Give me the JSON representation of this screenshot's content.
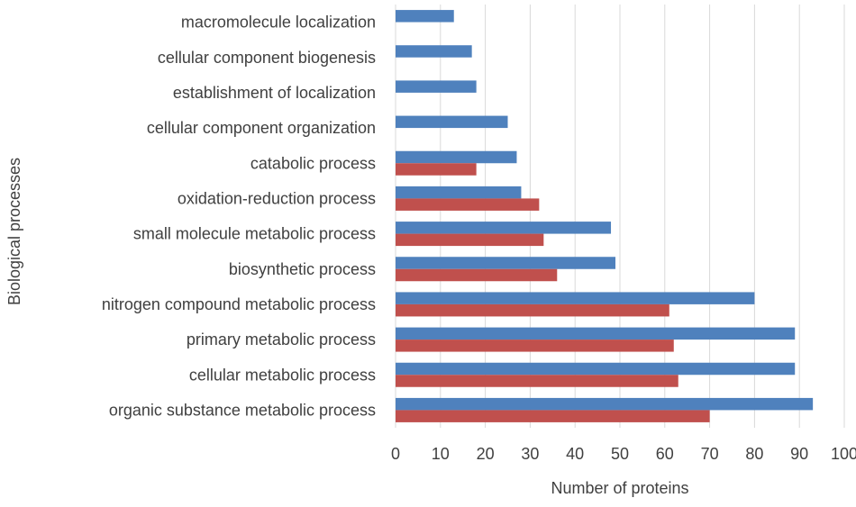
{
  "chart_data": {
    "type": "bar",
    "orientation": "horizontal",
    "categories": [
      "organic substance metabolic process",
      "cellular metabolic process",
      "primary metabolic process",
      "nitrogen compound metabolic process",
      "biosynthetic process",
      "small molecule metabolic process",
      "oxidation-reduction process",
      "catabolic process",
      "cellular component organization",
      "establishment of localization",
      "cellular component biogenesis",
      "macromolecule localization"
    ],
    "series": [
      {
        "color": "#4f81bd",
        "values": [
          93,
          89,
          89,
          80,
          49,
          48,
          28,
          27,
          25,
          18,
          17,
          13
        ]
      },
      {
        "color": "#c0504d",
        "values": [
          70,
          63,
          62,
          61,
          36,
          33,
          32,
          18,
          null,
          null,
          null,
          null
        ]
      }
    ],
    "xlabel": "Number of proteins",
    "ylabel": "Biological processes",
    "xlim": [
      0,
      100
    ],
    "xticks": [
      0,
      10,
      20,
      30,
      40,
      50,
      60,
      70,
      80,
      90,
      100
    ],
    "grid": true,
    "legend": "none"
  }
}
